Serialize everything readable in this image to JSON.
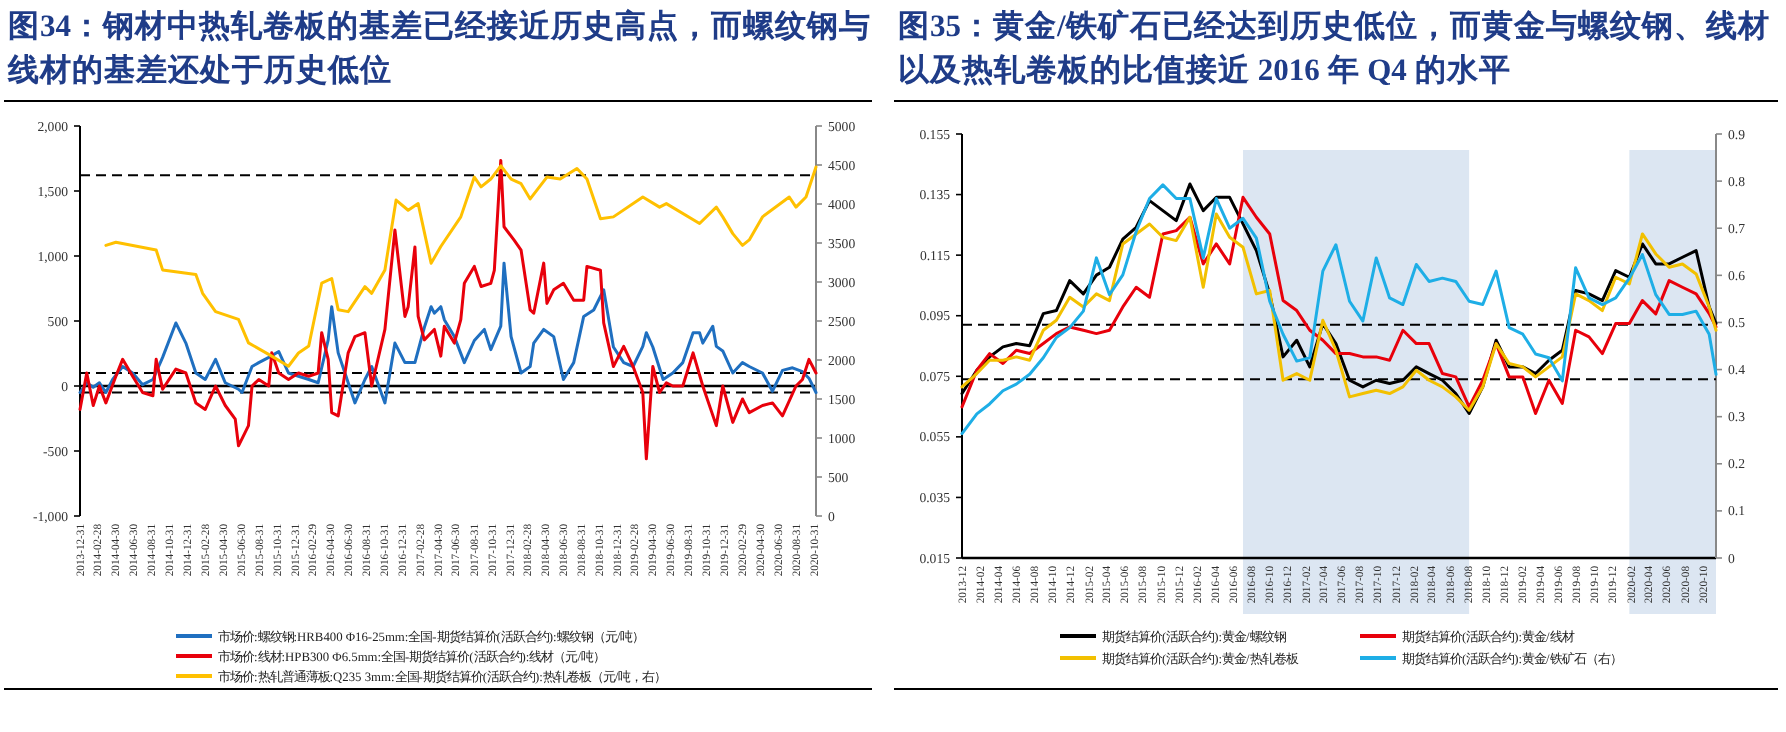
{
  "chart_data": [
    {
      "type": "line",
      "title": "图34：钢材中热轧卷板的基差已经接近历史高点，而螺纹钢与线材的基差还处于历史低位",
      "xlim": [
        "2013-12-31",
        "2020-11-07"
      ],
      "xticks": [
        "2013-12-31",
        "2014-02-28",
        "2014-04-30",
        "2014-06-30",
        "2014-08-31",
        "2014-10-31",
        "2014-12-31",
        "2015-02-28",
        "2015-04-30",
        "2015-06-30",
        "2015-08-31",
        "2015-10-31",
        "2015-12-31",
        "2016-02-29",
        "2016-04-30",
        "2016-06-30",
        "2016-08-31",
        "2016-10-31",
        "2016-12-31",
        "2017-02-28",
        "2017-04-30",
        "2017-06-30",
        "2017-08-31",
        "2017-10-31",
        "2017-12-31",
        "2018-02-28",
        "2018-04-30",
        "2018-06-30",
        "2018-08-31",
        "2018-10-31",
        "2018-12-31",
        "2019-02-28",
        "2019-04-30",
        "2019-06-30",
        "2019-08-31",
        "2019-10-31",
        "2019-12-31",
        "2020-02-29",
        "2020-04-30",
        "2020-06-30",
        "2020-08-31",
        "2020-10-31"
      ],
      "ylim": [
        -1000,
        2000
      ],
      "yticks": [
        {
          "value": 2000,
          "label": "2,000"
        },
        {
          "value": 1500,
          "label": "1,500"
        },
        {
          "value": 1000,
          "label": "1,000"
        },
        500,
        0,
        -500,
        {
          "value": -1000,
          "label": "-1,000"
        }
      ],
      "y2lim": [
        0,
        5000
      ],
      "y2ticks": [
        5000,
        4500,
        4000,
        3500,
        3000,
        2500,
        2000,
        1500,
        1000,
        500,
        0
      ],
      "ref_lines": [
        {
          "axis": "y",
          "value": 100,
          "line_style": "dashed",
          "color": "#000000"
        },
        {
          "axis": "y",
          "value": -50,
          "line_style": "dashed",
          "color": "#000000"
        },
        {
          "axis": "y2",
          "value": 4370,
          "line_style": "dashed",
          "color": "#000000"
        }
      ],
      "legend": "bottom",
      "series": [
        {
          "name": "市场价:螺纹钢:HRB400 Φ16-25mm:全国-期货结算价(活跃合约):螺纹钢（元/吨）",
          "color": "#1f6fc0",
          "x": [
            "2013-12-31",
            "2014-01-23",
            "2014-02-14",
            "2014-03-07",
            "2014-03-29",
            "2014-04-21",
            "2014-05-25",
            "2014-06-28",
            "2014-08-01",
            "2014-09-05",
            "2014-10-08",
            "2014-11-22",
            "2014-12-26",
            "2015-01-29",
            "2015-03-02",
            "2015-04-06",
            "2015-05-09",
            "2015-06-23",
            "2015-07-05",
            "2015-08-08",
            "2015-08-31",
            "2015-10-04",
            "2015-11-07",
            "2015-12-10",
            "2016-01-13",
            "2016-02-17",
            "2016-03-20",
            "2016-04-23",
            "2016-05-05",
            "2016-05-27",
            "2016-06-19",
            "2016-07-23",
            "2016-08-26",
            "2016-09-18",
            "2016-11-02",
            "2016-12-06",
            "2017-01-09",
            "2017-02-12",
            "2017-03-16",
            "2017-04-08",
            "2017-04-19",
            "2017-05-11",
            "2017-05-23",
            "2017-06-26",
            "2017-07-30",
            "2017-09-02",
            "2017-10-06",
            "2017-10-28",
            "2017-12-01",
            "2017-12-12",
            "2018-01-05",
            "2018-02-08",
            "2018-03-11",
            "2018-03-23",
            "2018-04-26",
            "2018-05-30",
            "2018-07-02",
            "2018-08-06",
            "2018-09-09",
            "2018-10-13",
            "2018-11-16",
            "2018-12-19",
            "2019-01-23",
            "2019-02-24",
            "2019-03-29",
            "2019-04-10",
            "2019-05-02",
            "2019-06-06",
            "2019-07-09",
            "2019-08-12",
            "2019-09-16",
            "2019-10-08",
            "2019-10-19",
            "2019-11-22",
            "2019-12-04",
            "2019-12-26",
            "2020-01-29",
            "2020-03-02",
            "2020-03-25",
            "2020-05-09",
            "2020-06-12",
            "2020-07-16",
            "2020-08-19",
            "2020-09-22",
            "2020-10-14",
            "2020-11-07"
          ],
          "values": [
            -50,
            25,
            -10,
            25,
            -50,
            50,
            150,
            100,
            10,
            50,
            220,
            485,
            330,
            100,
            50,
            205,
            25,
            -25,
            -50,
            150,
            180,
            220,
            265,
            100,
            75,
            50,
            25,
            355,
            610,
            255,
            100,
            -130,
            50,
            150,
            -130,
            330,
            180,
            180,
            450,
            610,
            560,
            610,
            510,
            380,
            180,
            350,
            435,
            280,
            460,
            945,
            380,
            100,
            150,
            330,
            435,
            380,
            50,
            180,
            535,
            585,
            740,
            300,
            180,
            150,
            305,
            410,
            300,
            50,
            100,
            180,
            410,
            410,
            330,
            460,
            305,
            270,
            100,
            180,
            150,
            100,
            -40,
            120,
            140,
            110,
            60,
            -50
          ]
        },
        {
          "name": "市场价:线材:HPB300 Φ6.5mm:全国-期货结算价(活跃合约):线材（元/吨）",
          "color": "#e8000b",
          "x": [
            "2013-12-31",
            "2014-01-23",
            "2014-02-14",
            "2014-03-07",
            "2014-03-29",
            "2014-05-02",
            "2014-05-25",
            "2014-06-28",
            "2014-08-01",
            "2014-09-05",
            "2014-09-16",
            "2014-10-08",
            "2014-11-22",
            "2014-12-26",
            "2015-01-29",
            "2015-03-02",
            "2015-04-06",
            "2015-05-09",
            "2015-06-12",
            "2015-06-23",
            "2015-07-27",
            "2015-08-08",
            "2015-08-31",
            "2015-10-04",
            "2015-10-14",
            "2015-11-07",
            "2015-12-10",
            "2016-01-13",
            "2016-02-17",
            "2016-03-20",
            "2016-04-01",
            "2016-04-23",
            "2016-05-05",
            "2016-05-27",
            "2016-06-30",
            "2016-07-23",
            "2016-08-26",
            "2016-09-18",
            "2016-11-02",
            "2016-12-06",
            "2017-01-09",
            "2017-01-20",
            "2017-02-12",
            "2017-02-23",
            "2017-03-16",
            "2017-04-19",
            "2017-05-11",
            "2017-05-23",
            "2017-06-26",
            "2017-07-18",
            "2017-07-30",
            "2017-09-02",
            "2017-09-25",
            "2017-10-28",
            "2017-11-09",
            "2017-12-01",
            "2017-12-12",
            "2018-01-16",
            "2018-02-08",
            "2018-03-11",
            "2018-03-23",
            "2018-04-26",
            "2018-05-07",
            "2018-05-30",
            "2018-07-02",
            "2018-08-06",
            "2018-08-17",
            "2018-09-09",
            "2018-09-20",
            "2018-11-05",
            "2018-11-16",
            "2018-12-19",
            "2019-01-23",
            "2019-02-24",
            "2019-03-29",
            "2019-04-10",
            "2019-05-02",
            "2019-05-25",
            "2019-06-17",
            "2019-07-09",
            "2019-08-12",
            "2019-09-16",
            "2019-10-19",
            "2019-12-04",
            "2019-12-26",
            "2020-01-29",
            "2020-03-02",
            "2020-03-25",
            "2020-05-09",
            "2020-06-12",
            "2020-07-16",
            "2020-08-31",
            "2020-09-22",
            "2020-10-14",
            "2020-11-07"
          ],
          "values": [
            -180,
            100,
            -150,
            0,
            -130,
            75,
            205,
            75,
            -50,
            -75,
            205,
            -25,
            130,
            100,
            -130,
            -180,
            0,
            -150,
            -255,
            -460,
            -305,
            0,
            50,
            0,
            255,
            100,
            50,
            100,
            75,
            100,
            410,
            205,
            -205,
            -230,
            255,
            380,
            410,
            0,
            435,
            1200,
            535,
            610,
            1070,
            535,
            355,
            435,
            230,
            460,
            330,
            510,
            790,
            920,
            765,
            790,
            890,
            1735,
            1225,
            1120,
            1045,
            585,
            560,
            945,
            635,
            740,
            790,
            660,
            660,
            660,
            920,
            890,
            485,
            150,
            305,
            150,
            -50,
            -560,
            150,
            -50,
            25,
            0,
            0,
            255,
            0,
            -305,
            0,
            -280,
            -100,
            -205,
            -150,
            -130,
            -230,
            0,
            50,
            205,
            100
          ]
        },
        {
          "name": "市场价:热轧普通薄板:Q235 3mm:全国-期货结算价(活跃合约):热轧卷板（元/吨，右）",
          "color": "#ffc000",
          "axis": "y2",
          "x": [
            "2014-03-29",
            "2014-05-02",
            "2014-09-16",
            "2014-10-08",
            "2015-01-29",
            "2015-02-21",
            "2015-04-06",
            "2015-06-23",
            "2015-07-27",
            "2015-10-14",
            "2015-12-10",
            "2016-01-13",
            "2016-02-17",
            "2016-04-01",
            "2016-05-05",
            "2016-05-27",
            "2016-06-30",
            "2016-08-26",
            "2016-09-18",
            "2016-11-02",
            "2016-12-10",
            "2017-01-20",
            "2017-02-23",
            "2017-04-08",
            "2017-05-11",
            "2017-07-18",
            "2017-09-02",
            "2017-09-25",
            "2017-10-28",
            "2017-12-01",
            "2018-01-05",
            "2018-02-08",
            "2018-03-11",
            "2018-05-07",
            "2018-06-21",
            "2018-08-17",
            "2018-09-20",
            "2018-11-05",
            "2018-12-19",
            "2019-03-29",
            "2019-05-25",
            "2019-06-17",
            "2019-10-08",
            "2019-12-04",
            "2019-12-26",
            "2020-01-29",
            "2020-03-02",
            "2020-03-25",
            "2020-05-09",
            "2020-08-08",
            "2020-08-31",
            "2020-10-04",
            "2020-11-07"
          ],
          "values": [
            3470,
            3510,
            3410,
            3155,
            3095,
            2855,
            2620,
            2520,
            2220,
            2050,
            1920,
            2090,
            2180,
            2985,
            3045,
            2645,
            2620,
            2940,
            2855,
            3155,
            4050,
            3920,
            4005,
            3240,
            3455,
            3835,
            4345,
            4220,
            4320,
            4490,
            4320,
            4260,
            4065,
            4345,
            4320,
            4455,
            4320,
            3810,
            3835,
            4090,
            3960,
            4005,
            3750,
            3960,
            3835,
            3620,
            3470,
            3540,
            3835,
            4090,
            3960,
            4090,
            4475
          ]
        }
      ]
    },
    {
      "type": "line",
      "title": "图35：黄金/铁矿石已经达到历史低位，而黄金与螺纹钢、线材以及热轧卷板的比值接近 2016 年 Q4 的水平",
      "xlim": [
        "2013-12-01",
        "2020-11-15"
      ],
      "xticks": [
        "2013-12",
        "2014-02",
        "2014-04",
        "2014-06",
        "2014-08",
        "2014-10",
        "2014-12",
        "2015-02",
        "2015-04",
        "2015-06",
        "2015-08",
        "2015-10",
        "2015-12",
        "2016-02",
        "2016-04",
        "2016-06",
        "2016-08",
        "2016-10",
        "2016-12",
        "2017-02",
        "2017-04",
        "2017-06",
        "2017-08",
        "2017-10",
        "2017-12",
        "2018-02",
        "2018-04",
        "2018-06",
        "2018-08",
        "2018-10",
        "2018-12",
        "2019-02",
        "2019-04",
        "2019-06",
        "2019-08",
        "2019-10",
        "2019-12",
        "2020-02",
        "2020-04",
        "2020-06",
        "2020-08",
        "2020-10"
      ],
      "ylim": [
        0.015,
        0.155
      ],
      "yticks": [
        0.155,
        0.135,
        0.115,
        0.095,
        0.075,
        0.055,
        0.035,
        0.015
      ],
      "y2lim": [
        0,
        0.9
      ],
      "y2ticks": [
        0.9,
        0.8,
        0.7,
        0.6,
        0.5,
        0.4,
        0.3,
        0.2,
        0.1,
        0
      ],
      "bands": [
        {
          "axis": "x",
          "from": "2016-07-05",
          "to": "2018-08-06",
          "color": "#dce6f2"
        },
        {
          "axis": "x",
          "from": "2020-01-28",
          "to": "2020-11-15",
          "color": "#dce6f2"
        }
      ],
      "ref_lines": [
        {
          "axis": "y",
          "value": 0.092,
          "line_style": "dashed",
          "color": "#000000"
        },
        {
          "axis": "y",
          "value": 0.074,
          "line_style": "dashed",
          "color": "#000000"
        }
      ],
      "legend": "bottom",
      "x": [
        "2013-12-01",
        "2014-01-20",
        "2014-03-04",
        "2014-04-18",
        "2014-06-02",
        "2014-07-17",
        "2014-09-01",
        "2014-10-15",
        "2014-11-29",
        "2015-01-14",
        "2015-02-27",
        "2015-04-12",
        "2015-05-27",
        "2015-07-11",
        "2015-08-25",
        "2015-10-09",
        "2015-11-23",
        "2016-01-08",
        "2016-02-22",
        "2016-04-06",
        "2016-05-21",
        "2016-07-05",
        "2016-08-19",
        "2016-10-03",
        "2016-11-17",
        "2017-01-02",
        "2017-02-15",
        "2017-03-31",
        "2017-05-14",
        "2017-06-29",
        "2017-08-13",
        "2017-09-27",
        "2017-11-11",
        "2017-12-26",
        "2018-02-09",
        "2018-03-24",
        "2018-05-08",
        "2018-06-22",
        "2018-08-06",
        "2018-09-21",
        "2018-11-05",
        "2018-12-19",
        "2019-02-03",
        "2019-03-18",
        "2019-05-02",
        "2019-06-16",
        "2019-07-31",
        "2019-09-14",
        "2019-10-29",
        "2019-12-13",
        "2020-01-28",
        "2020-03-12",
        "2020-04-26",
        "2020-06-10",
        "2020-07-25",
        "2020-09-09",
        "2020-10-23",
        "2020-11-15"
      ],
      "series": [
        {
          "name": "期货结算价(活跃合约):黄金/螺纹钢",
          "color": "#000000",
          "values": [
            0.0693,
            0.077,
            0.0814,
            0.0847,
            0.0858,
            0.0851,
            0.0957,
            0.0967,
            0.1066,
            0.1022,
            0.1084,
            0.111,
            0.1203,
            0.1242,
            0.133,
            0.1297,
            0.1264,
            0.1385,
            0.1297,
            0.1341,
            0.1341,
            0.1253,
            0.1165,
            0.1022,
            0.0814,
            0.0869,
            0.0781,
            0.0924,
            0.0858,
            0.0737,
            0.0715,
            0.0737,
            0.0726,
            0.0737,
            0.0781,
            0.0759,
            0.0737,
            0.0693,
            0.0627,
            0.0715,
            0.0869,
            0.0781,
            0.0781,
            0.0759,
            0.0803,
            0.0836,
            0.1033,
            0.1022,
            0.1,
            0.1099,
            0.1077,
            0.1187,
            0.1121,
            0.1121,
            0.1143,
            0.1165,
            0.0979,
            0.0924
          ]
        },
        {
          "name": "期货结算价(活跃合约):黄金/线材",
          "color": "#e8000b",
          "values": [
            0.0649,
            0.077,
            0.0825,
            0.0792,
            0.0836,
            0.0825,
            0.0858,
            0.0891,
            0.0913,
            0.0902,
            0.0891,
            0.0902,
            0.0979,
            0.1044,
            0.1011,
            0.122,
            0.1231,
            0.1275,
            0.1121,
            0.1187,
            0.1121,
            0.1341,
            0.1275,
            0.122,
            0.1,
            0.0967,
            0.0902,
            0.0869,
            0.0825,
            0.0825,
            0.0814,
            0.0814,
            0.0803,
            0.0902,
            0.0858,
            0.0858,
            0.0759,
            0.0748,
            0.0649,
            0.0737,
            0.0858,
            0.0748,
            0.0748,
            0.0627,
            0.0737,
            0.066,
            0.0902,
            0.088,
            0.0825,
            0.0924,
            0.0924,
            0.1,
            0.0956,
            0.1066,
            0.1044,
            0.1022,
            0.0957,
            0.0913
          ]
        },
        {
          "name": "期货结算价(活跃合约):黄金/热轧卷板",
          "color": "#f2c000",
          "values": [
            0.0715,
            0.0759,
            0.0803,
            0.0803,
            0.0814,
            0.0803,
            0.0902,
            0.0935,
            0.1011,
            0.0979,
            0.1022,
            0.1,
            0.1187,
            0.122,
            0.1253,
            0.1209,
            0.1198,
            0.1275,
            0.1044,
            0.1286,
            0.1209,
            0.1176,
            0.1022,
            0.1033,
            0.0737,
            0.0759,
            0.0737,
            0.0935,
            0.0836,
            0.0682,
            0.0693,
            0.0704,
            0.0693,
            0.0715,
            0.077,
            0.0737,
            0.0715,
            0.0682,
            0.0638,
            0.0715,
            0.0858,
            0.0792,
            0.0781,
            0.0748,
            0.0781,
            0.0814,
            0.1022,
            0.1,
            0.0967,
            0.1077,
            0.1055,
            0.122,
            0.1154,
            0.111,
            0.1121,
            0.1088,
            0.0979,
            0.0902
          ]
        },
        {
          "name": "期货结算价(活跃合约):黄金/铁矿石（右）",
          "color": "#1eaee6",
          "axis": "y2",
          "values": [
            0.264,
            0.306,
            0.327,
            0.355,
            0.369,
            0.39,
            0.425,
            0.468,
            0.489,
            0.524,
            0.637,
            0.559,
            0.601,
            0.693,
            0.763,
            0.792,
            0.763,
            0.763,
            0.637,
            0.763,
            0.7,
            0.721,
            0.679,
            0.545,
            0.475,
            0.418,
            0.425,
            0.609,
            0.665,
            0.545,
            0.503,
            0.637,
            0.552,
            0.538,
            0.623,
            0.587,
            0.594,
            0.587,
            0.545,
            0.538,
            0.609,
            0.489,
            0.475,
            0.433,
            0.425,
            0.376,
            0.616,
            0.552,
            0.538,
            0.552,
            0.594,
            0.644,
            0.559,
            0.517,
            0.517,
            0.524,
            0.475,
            0.39
          ]
        }
      ]
    }
  ]
}
